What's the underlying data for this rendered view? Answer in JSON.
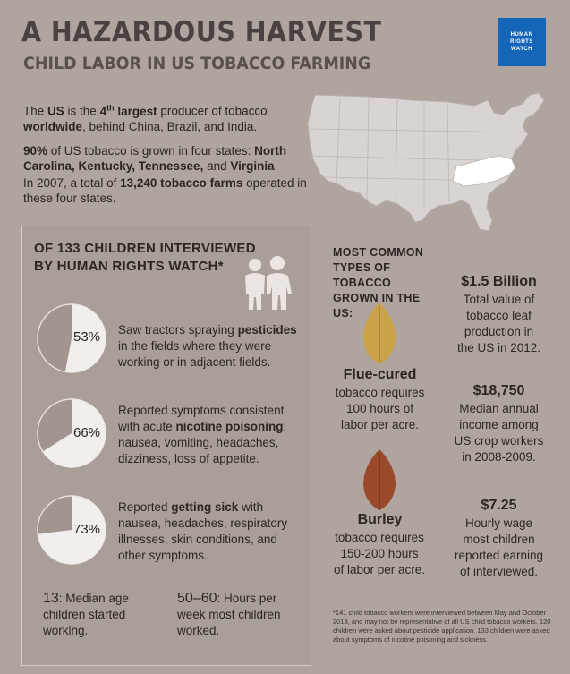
{
  "header": {
    "title": "A HAZARDOUS HARVEST",
    "subtitle": "CHILD LABOR IN US TOBACCO FARMING",
    "logo": [
      "HUMAN",
      "RIGHTS",
      "WATCH"
    ]
  },
  "intro": {
    "p1": {
      "a": "The ",
      "b": "US",
      "c": " is the ",
      "d": "4",
      "e": "th",
      "f": " largest",
      "g": " producer of tobacco ",
      "h": "worldwide",
      "i": ", behind China, Brazil, and India."
    },
    "p2": {
      "a": "90%",
      "b": " of US tobacco is grown in four states: ",
      "c": "North Carolina, Kentucky, Tennessee, ",
      "d": "and ",
      "e": "Virginia",
      "f": "."
    },
    "p3": {
      "a": "In 2007, a total of ",
      "b": "13,240 tobacco farms",
      "c": " operated in these four states."
    }
  },
  "panel": {
    "title_line1": "OF 133 CHILDREN INTERVIEWED",
    "title_line2": "BY HUMAN RIGHTS WATCH*",
    "stats": [
      {
        "percent": "53%",
        "value": 53,
        "a": "Saw tractors spraying ",
        "b": "pesticides",
        "c": " in the fields where they were working or in adjacent fields."
      },
      {
        "percent": "66%",
        "value": 66,
        "a": "Reported symptoms consistent with acute ",
        "b": "nicotine poisoning",
        "c": ": nausea, vomiting, headaches, dizziness, loss of appetite."
      },
      {
        "percent": "73%",
        "value": 73,
        "a": "Reported ",
        "b": "getting sick",
        "c": " with nausea, headaches, respiratory illnesses, skin conditions, and other symptoms."
      }
    ],
    "median_age": {
      "value": "13",
      "text": ": Median age children started working."
    },
    "hours": {
      "value": "50–60",
      "text": ": Hours per week most children worked."
    }
  },
  "types": {
    "title_line1": "MOST COMMON",
    "title_line2": "TYPES OF TOBACCO",
    "title_line3": "GROWN IN THE US:",
    "flue": {
      "name": "Flue-cured",
      "desc1": "tobacco requires",
      "desc2": "100 hours of",
      "desc3": "labor per acre."
    },
    "burley": {
      "name": "Burley",
      "desc1": "tobacco requires",
      "desc2": "150-200 hours",
      "desc3": "of labor per acre."
    }
  },
  "facts": [
    {
      "value": "$1.5 Billion",
      "lines": [
        "Total value of",
        "tobacco leaf",
        "production in",
        "the US in 2012."
      ]
    },
    {
      "value": "$18,750",
      "lines": [
        "Median annual",
        "income among",
        "US crop workers",
        "in 2008-2009."
      ]
    },
    {
      "value": "$7.25",
      "lines": [
        "Hourly wage",
        "most children",
        "reported earning",
        "of interviewed."
      ]
    }
  ],
  "footnote": "*141 child tobacco workers were interviewed between May and October 2013, and may not be representative of all US child tobacco workers. 120 children were asked about pesticide application. 133 children were asked about symptoms of nicotine poisoning and sickness.",
  "colors": {
    "background": "#b0a49e",
    "panel": "#aa9e98",
    "pie_light": "#f2eeec",
    "pie_dark": "#a2958f",
    "logo_blue": "#1565b8",
    "highlight_states": "#ffffff"
  },
  "icons": {
    "kids": "children-silhouette-icon",
    "leaf_flue": "flue-cured-leaf-icon",
    "leaf_burley": "burley-leaf-icon",
    "map": "us-map"
  }
}
